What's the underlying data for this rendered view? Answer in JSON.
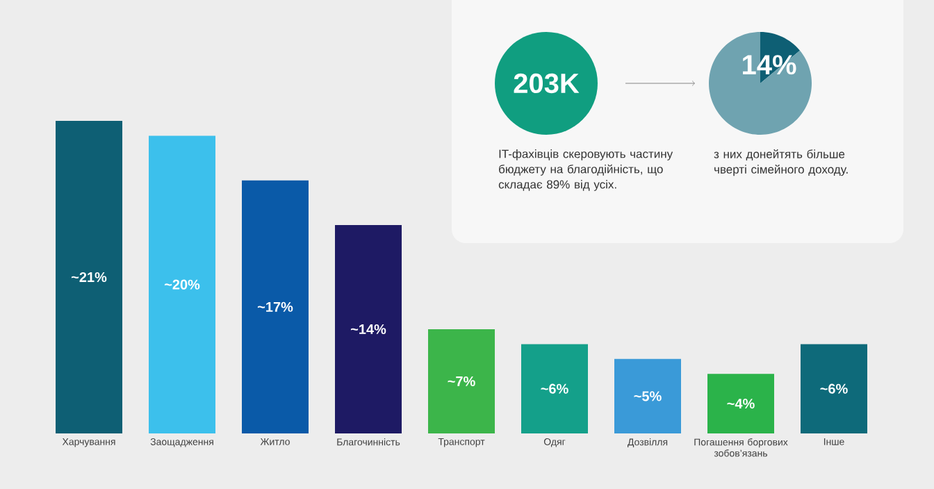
{
  "chart_data": [
    {
      "type": "bar",
      "categories": [
        "Харчування",
        "Заощадження",
        "Житло",
        "Благочинність",
        "Транспорт",
        "Одяг",
        "Дозвілля",
        "Погашення боргових зобов’язань",
        "Інше"
      ],
      "values": [
        21,
        20,
        17,
        14,
        7,
        6,
        5,
        4,
        6
      ],
      "colors": [
        "#0e5f74",
        "#3cc0ec",
        "#0a5aa8",
        "#1e1a64",
        "#3cb54a",
        "#14a08a",
        "#3a9ad8",
        "#2bb34a",
        "#0e6a7a"
      ],
      "value_labels": [
        "~21%",
        "~20%",
        "~17%",
        "~14%",
        "~7%",
        "~6%",
        "~5%",
        "~4%",
        "~6%"
      ]
    },
    {
      "type": "pie",
      "categories": [
        null,
        null
      ],
      "values": [
        14,
        86
      ],
      "colors": [
        "#0e5f74",
        "#6fa3b0"
      ],
      "value_labels": [
        "14%",
        null
      ],
      "annotations": [
        "203K",
        "IT-фахівців скеровують частину бюджету на благодійність, що складає 89% від усіх.",
        "з них донейтять більше чверті сімейного доходу."
      ]
    }
  ]
}
